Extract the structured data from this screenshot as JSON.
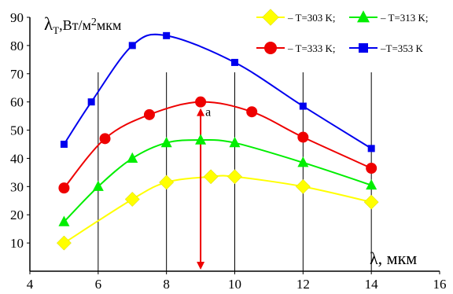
{
  "chart_data": {
    "type": "line",
    "xlabel": "λ, мкм",
    "ylabel": "λ",
    "ylabel_sub": "T",
    "ylabel_units": ",Вт/м",
    "ylabel_sup": "2",
    "ylabel_units2": "мкм",
    "xlim": [
      4,
      16
    ],
    "ylim": [
      0,
      90
    ],
    "xticks": [
      4,
      6,
      8,
      10,
      12,
      14,
      16
    ],
    "yticks": [
      10,
      20,
      30,
      40,
      50,
      60,
      70,
      80,
      90
    ],
    "grid": "vertical",
    "legend_position": "top-right",
    "series": [
      {
        "name": "– T=303 K;",
        "color": "#ffff00",
        "marker": "diamond",
        "x": [
          5,
          7,
          8,
          9.3,
          10,
          12,
          14
        ],
        "y": [
          10,
          25.5,
          31.5,
          33.5,
          33.5,
          30,
          24.5
        ]
      },
      {
        "name": "– T=313 K;",
        "color": "#00ee00",
        "marker": "triangle",
        "x": [
          5,
          6,
          7,
          8,
          9,
          10,
          12,
          14
        ],
        "y": [
          17.5,
          30,
          40,
          45.5,
          46.5,
          45.5,
          38.5,
          30.5
        ]
      },
      {
        "name": "– T=333 K;",
        "color": "#ee0000",
        "marker": "circle",
        "x": [
          5,
          6.2,
          7.5,
          9,
          10.5,
          12,
          14
        ],
        "y": [
          29.5,
          47,
          55.5,
          60,
          56.5,
          47.5,
          36.5
        ]
      },
      {
        "name": "–T=353 K",
        "color": "#0000ee",
        "marker": "square",
        "x": [
          5,
          5.8,
          7,
          8,
          10,
          12,
          14
        ],
        "y": [
          45,
          60,
          80,
          83.5,
          74,
          58.5,
          43.5
        ]
      }
    ],
    "annotations": [
      {
        "text": "a",
        "x": 9,
        "y_top": 60,
        "y_bottom": 0,
        "color": "#ee0000"
      }
    ]
  }
}
